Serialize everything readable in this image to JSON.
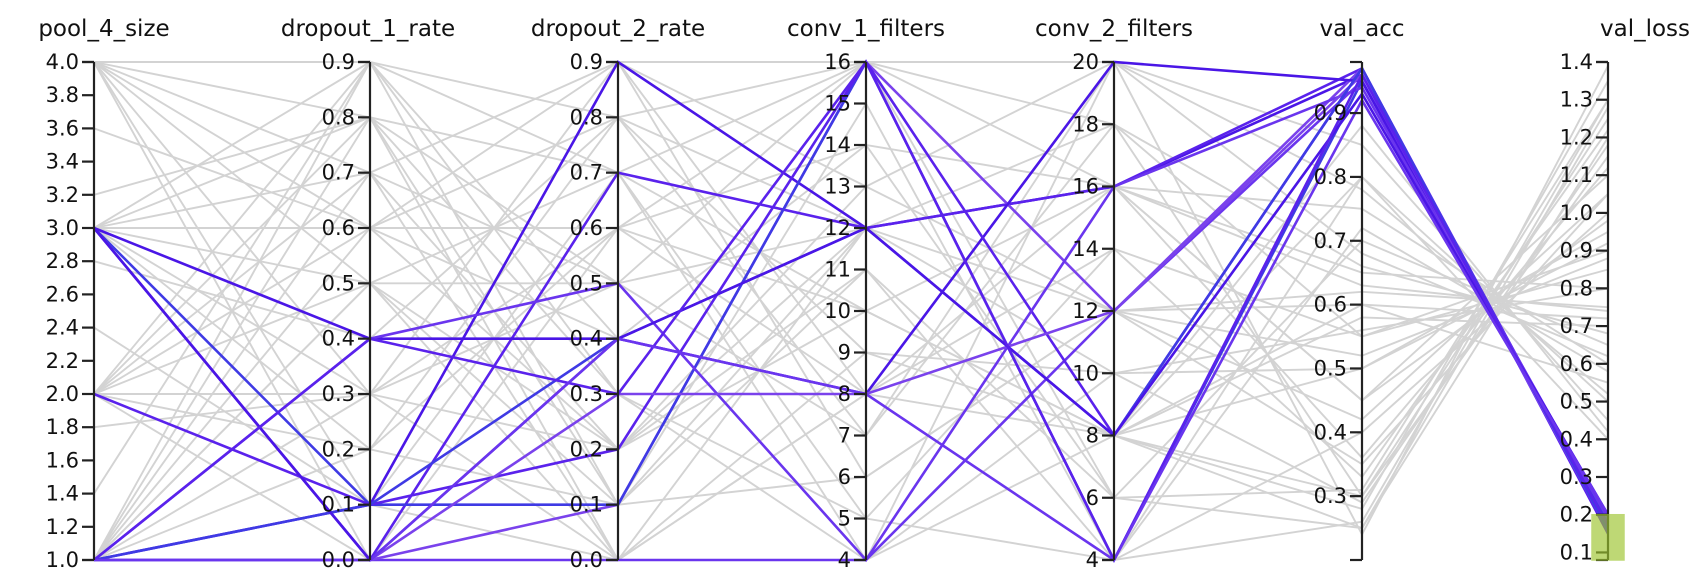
{
  "chart_data": {
    "type": "parallel_coordinates",
    "axes": [
      {
        "key": "pool_4_size",
        "label": "pool_4_size",
        "min": 1.0,
        "max": 4.0,
        "ticks": [
          "1.0",
          "1.2",
          "1.4",
          "1.6",
          "1.8",
          "2.0",
          "2.2",
          "2.4",
          "2.6",
          "2.8",
          "3.0",
          "3.2",
          "3.4",
          "3.6",
          "3.8",
          "4.0"
        ]
      },
      {
        "key": "dropout_1_rate",
        "label": "dropout_1_rate",
        "min": 0.0,
        "max": 0.9,
        "ticks": [
          "0.0",
          "0.1",
          "0.2",
          "0.3",
          "0.4",
          "0.5",
          "0.6",
          "0.7",
          "0.8",
          "0.9"
        ]
      },
      {
        "key": "dropout_2_rate",
        "label": "dropout_2_rate",
        "min": 0.0,
        "max": 0.9,
        "ticks": [
          "0.0",
          "0.1",
          "0.2",
          "0.3",
          "0.4",
          "0.5",
          "0.6",
          "0.7",
          "0.8",
          "0.9"
        ]
      },
      {
        "key": "conv_1_filters",
        "label": "conv_1_filters",
        "min": 4,
        "max": 16,
        "ticks": [
          "4",
          "5",
          "6",
          "7",
          "8",
          "9",
          "10",
          "11",
          "12",
          "13",
          "14",
          "15",
          "16"
        ]
      },
      {
        "key": "conv_2_filters",
        "label": "conv_2_filters",
        "min": 4,
        "max": 20,
        "ticks": [
          "4",
          "6",
          "8",
          "10",
          "12",
          "14",
          "16",
          "18",
          "20"
        ]
      },
      {
        "key": "val_acc",
        "label": "val_acc",
        "min": 0.2,
        "max": 0.98,
        "ticks": [
          "0.3",
          "0.4",
          "0.5",
          "0.6",
          "0.7",
          "0.8",
          "0.9"
        ]
      },
      {
        "key": "val_loss",
        "label": "val_loss",
        "min": 0.08,
        "max": 1.4,
        "ticks": [
          "0.1",
          "0.2",
          "0.3",
          "0.4",
          "0.5",
          "0.6",
          "0.7",
          "0.8",
          "0.9",
          "1.0",
          "1.1",
          "1.2",
          "1.3",
          "1.4"
        ]
      }
    ],
    "brush": {
      "axis": "val_loss",
      "range": [
        0.08,
        0.2
      ],
      "color": "#9cc42c"
    },
    "background_color": "#d3d3d3",
    "highlight_colors": [
      "#4a16e6",
      "#5a22ec",
      "#6a35ee",
      "#7a42ec",
      "#3f3ae4"
    ],
    "highlighted_lines": [
      [
        1.0,
        0.1,
        0.9,
        12,
        16,
        0.96,
        0.18
      ],
      [
        1.0,
        0.0,
        0.7,
        12,
        16,
        0.97,
        0.17
      ],
      [
        1.0,
        0.0,
        0.0,
        4,
        12,
        0.95,
        0.19
      ],
      [
        3.0,
        0.0,
        0.1,
        16,
        12,
        0.97,
        0.16
      ],
      [
        3.0,
        0.1,
        0.1,
        16,
        4,
        0.95,
        0.18
      ],
      [
        3.0,
        0.4,
        0.4,
        8,
        20,
        0.95,
        0.17
      ],
      [
        2.0,
        0.1,
        0.2,
        16,
        8,
        0.97,
        0.15
      ],
      [
        1.0,
        0.4,
        0.5,
        4,
        16,
        0.94,
        0.19
      ],
      [
        3.0,
        0.0,
        0.3,
        8,
        12,
        0.96,
        0.16
      ],
      [
        1.0,
        0.1,
        0.4,
        12,
        8,
        0.97,
        0.16
      ],
      [
        3.0,
        0.0,
        0.4,
        12,
        8,
        0.93,
        0.2
      ],
      [
        1.0,
        0.4,
        0.3,
        16,
        4,
        0.96,
        0.17
      ],
      [
        1.0,
        0.0,
        0.4,
        8,
        4,
        0.92,
        0.2
      ]
    ],
    "background_lines": [
      [
        4.0,
        0.9,
        0.8,
        16,
        20,
        0.24,
        1.39
      ],
      [
        4.0,
        0.8,
        0.0,
        12,
        18,
        0.3,
        1.25
      ],
      [
        4.0,
        0.7,
        0.5,
        4,
        16,
        0.45,
        1.1
      ],
      [
        4.0,
        0.3,
        0.2,
        10,
        8,
        0.25,
        1.2
      ],
      [
        4.0,
        0.6,
        0.6,
        8,
        14,
        0.55,
        0.9
      ],
      [
        4.0,
        0.1,
        0.9,
        13,
        12,
        0.6,
        0.55
      ],
      [
        4.0,
        0.0,
        0.3,
        5,
        4,
        0.8,
        0.4
      ],
      [
        3.0,
        0.9,
        0.7,
        16,
        8,
        0.28,
        1.35
      ],
      [
        3.0,
        0.8,
        0.1,
        6,
        12,
        0.35,
        1.05
      ],
      [
        3.0,
        0.6,
        0.4,
        12,
        16,
        0.65,
        0.8
      ],
      [
        3.0,
        0.5,
        0.0,
        9,
        10,
        0.5,
        0.95
      ],
      [
        3.0,
        0.3,
        0.6,
        14,
        6,
        0.7,
        0.65
      ],
      [
        3.0,
        0.2,
        0.8,
        7,
        20,
        0.85,
        0.45
      ],
      [
        3.0,
        0.7,
        0.2,
        11,
        4,
        0.26,
        1.3
      ],
      [
        2.0,
        0.9,
        0.3,
        4,
        8,
        0.3,
        1.15
      ],
      [
        2.0,
        0.7,
        0.9,
        16,
        18,
        0.55,
        0.85
      ],
      [
        2.0,
        0.5,
        0.5,
        12,
        12,
        0.62,
        0.75
      ],
      [
        2.0,
        0.3,
        0.0,
        8,
        16,
        0.75,
        0.6
      ],
      [
        2.0,
        0.0,
        0.6,
        10,
        8,
        0.8,
        0.5
      ],
      [
        2.0,
        0.2,
        0.1,
        15,
        4,
        0.4,
        1.0
      ],
      [
        2.0,
        0.8,
        0.7,
        5,
        14,
        0.33,
        1.22
      ],
      [
        1.0,
        0.8,
        0.5,
        16,
        16,
        0.45,
        0.98
      ],
      [
        1.0,
        0.6,
        0.8,
        9,
        8,
        0.58,
        0.7
      ],
      [
        1.0,
        0.5,
        0.2,
        13,
        20,
        0.68,
        0.62
      ],
      [
        1.0,
        0.3,
        0.9,
        6,
        12,
        0.52,
        0.88
      ],
      [
        1.0,
        0.9,
        0.1,
        11,
        6,
        0.25,
        1.28
      ],
      [
        1.0,
        0.7,
        0.0,
        4,
        10,
        0.29,
        1.18
      ],
      [
        1.0,
        0.2,
        0.6,
        16,
        4,
        0.72,
        0.58
      ],
      [
        2.8,
        0.4,
        0.8,
        12,
        8,
        0.6,
        0.72
      ],
      [
        3.6,
        0.6,
        0.9,
        8,
        12,
        0.42,
        1.05
      ],
      [
        1.4,
        0.9,
        0.4,
        14,
        16,
        0.36,
        1.12
      ],
      [
        2.4,
        0.1,
        0.7,
        4,
        20,
        0.78,
        0.52
      ],
      [
        3.2,
        0.8,
        0.3,
        16,
        6,
        0.31,
        1.3
      ],
      [
        1.8,
        0.3,
        0.5,
        7,
        18,
        0.66,
        0.68
      ],
      [
        4.0,
        0.5,
        0.1,
        12,
        8,
        0.5,
        0.92
      ],
      [
        3.0,
        0.1,
        0.0,
        8,
        8,
        0.88,
        0.42
      ],
      [
        2.0,
        0.6,
        0.2,
        12,
        10,
        0.56,
        0.8
      ],
      [
        1.0,
        0.5,
        0.7,
        10,
        16,
        0.63,
        0.74
      ]
    ]
  }
}
